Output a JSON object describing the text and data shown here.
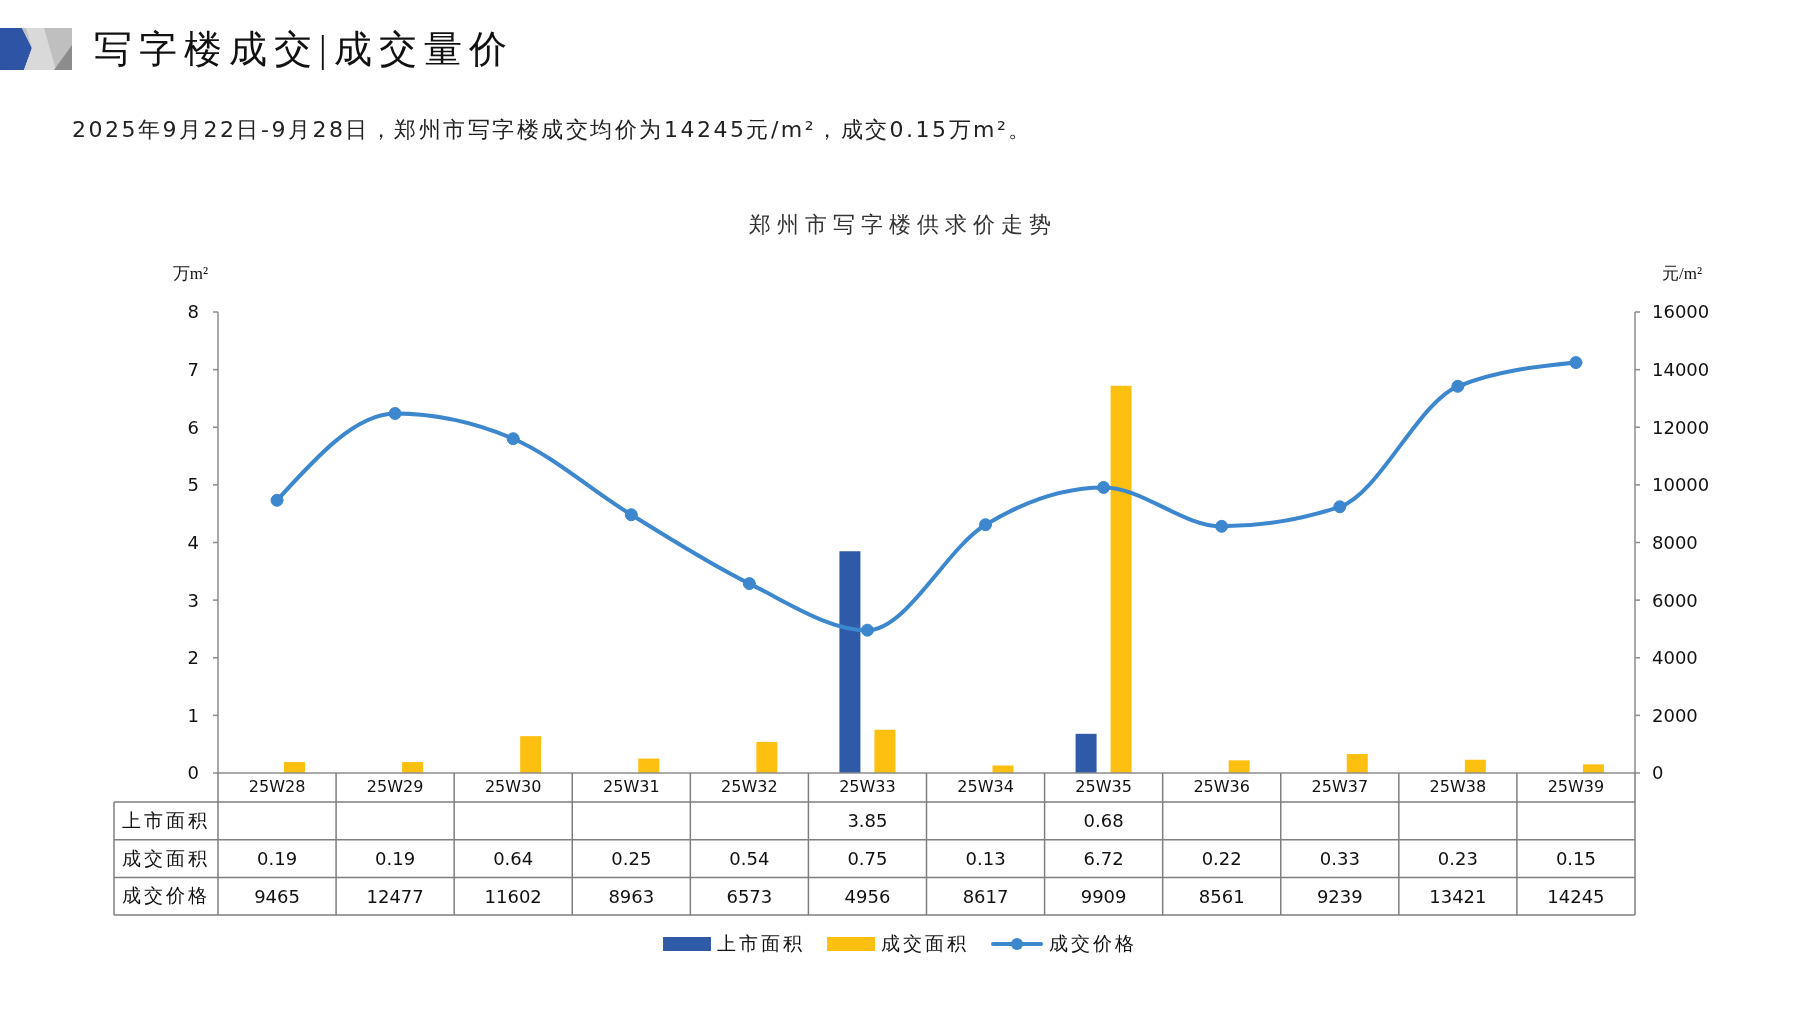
{
  "chart_data": {
    "type": "bar",
    "title": "写字楼成交|成交量价",
    "subtitle": "2025年9月22日-9月28日，郑州市写字楼成交均价为14245元/m²，成交0.15万m²。",
    "annotations": [
      "郑州市写字楼供求价走势"
    ],
    "ylabel": "万m²",
    "y2label": "元/m²",
    "categories": [
      "25W28",
      "25W29",
      "25W30",
      "25W31",
      "25W32",
      "25W33",
      "25W34",
      "25W35",
      "25W36",
      "25W37",
      "25W38",
      "25W39"
    ],
    "series": [
      {
        "name": "上市面积",
        "color": "#2e5aa8",
        "values": [
          null,
          null,
          null,
          null,
          null,
          3.85,
          null,
          0.68,
          null,
          null,
          null,
          null
        ]
      },
      {
        "name": "成交面积",
        "color": "#fdc010",
        "values": [
          0.19,
          0.19,
          0.64,
          0.25,
          0.54,
          0.75,
          0.13,
          6.72,
          0.22,
          0.33,
          0.23,
          0.15
        ]
      },
      {
        "name": "成交价格",
        "type": "line",
        "axis": "y2",
        "color": "#3c87cd",
        "values": [
          9465,
          12477,
          11602,
          8963,
          6573,
          4956,
          8617,
          9909,
          8561,
          9239,
          13421,
          14245
        ]
      }
    ],
    "ylim": [
      0,
      8
    ],
    "yticks": [
      0,
      1,
      2,
      3,
      4,
      5,
      6,
      7,
      8
    ],
    "y2lim": [
      0,
      16000
    ],
    "y2ticks": [
      0,
      2000,
      4000,
      6000,
      8000,
      10000,
      12000,
      14000,
      16000
    ],
    "marker": "circle",
    "legend": "bottom",
    "data_labels": true
  }
}
